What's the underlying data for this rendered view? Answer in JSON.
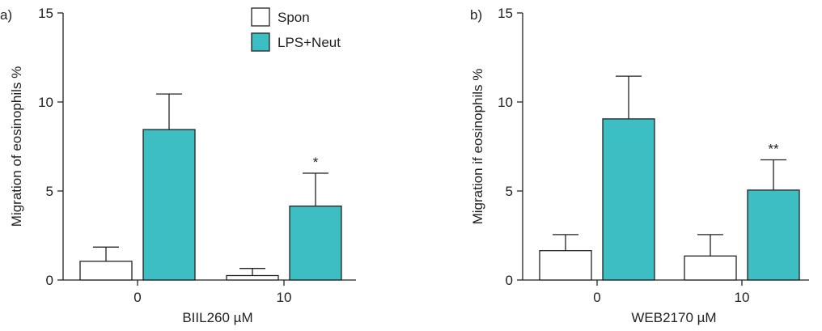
{
  "legend": [
    {
      "label": "Spon",
      "color": "#ffffff"
    },
    {
      "label": "LPS+Neut",
      "color": "#3dbec2"
    }
  ],
  "colors": {
    "spon": "#ffffff",
    "lps": "#3dbec2",
    "stroke": "#222222"
  },
  "chart_data": [
    {
      "type": "bar",
      "panel_label": "a)",
      "categories": [
        "0",
        "10"
      ],
      "xlabel": "BIIL260 µM",
      "ylabel": "Migration of eosinophils %",
      "ylim": [
        0,
        15
      ],
      "yticks": [
        "0",
        "5",
        "10",
        "15"
      ],
      "series": [
        {
          "name": "Spon",
          "values": [
            1.05,
            0.25
          ],
          "errors": [
            0.8,
            0.4
          ],
          "sig": [
            "",
            ""
          ]
        },
        {
          "name": "LPS+Neut",
          "values": [
            8.45,
            4.15
          ],
          "errors": [
            2.0,
            1.85
          ],
          "sig": [
            "",
            "*"
          ]
        }
      ]
    },
    {
      "type": "bar",
      "panel_label": "b)",
      "categories": [
        "0",
        "10"
      ],
      "xlabel": "WEB2170 µM",
      "ylabel": "Migration if eosinophils %",
      "ylim": [
        0,
        15
      ],
      "yticks": [
        "0",
        "5",
        "10",
        "15"
      ],
      "series": [
        {
          "name": "Spon",
          "values": [
            1.65,
            1.35
          ],
          "errors": [
            0.9,
            1.2
          ],
          "sig": [
            "",
            ""
          ]
        },
        {
          "name": "LPS+Neut",
          "values": [
            9.05,
            5.05
          ],
          "errors": [
            2.4,
            1.7
          ],
          "sig": [
            "",
            "**"
          ]
        }
      ]
    }
  ]
}
